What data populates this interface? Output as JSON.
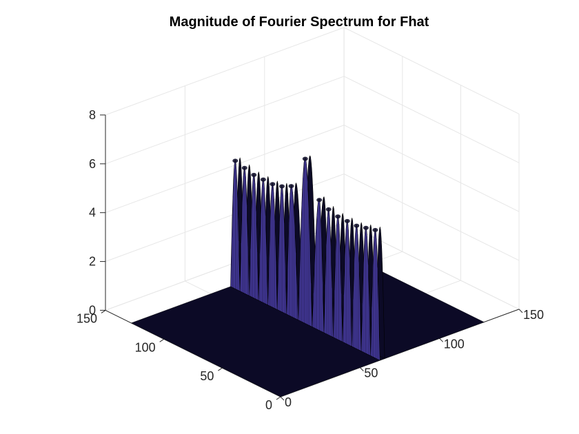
{
  "chart_data": {
    "type": "surface",
    "title": "Magnitude of Fourier Spectrum for Fhat",
    "xlabel": "",
    "ylabel": "",
    "zlabel": "",
    "xlim": [
      0,
      150
    ],
    "ylim": [
      0,
      150
    ],
    "zlim": [
      0,
      8
    ],
    "x_ticks": [
      "0",
      "50",
      "100",
      "150"
    ],
    "y_ticks": [
      "0",
      "50",
      "100",
      "150"
    ],
    "z_ticks": [
      "0",
      "2",
      "4",
      "6",
      "8"
    ],
    "grid": true,
    "surface_extent": {
      "x": [
        0,
        128
      ],
      "y": [
        0,
        128
      ]
    },
    "ridge": {
      "x_center": 64,
      "x_halfwidth": 1.5,
      "peak_y": 64,
      "lobe_peaks": [
        {
          "y": 4,
          "z": 5.3
        },
        {
          "y": 12,
          "z": 5.2
        },
        {
          "y": 20,
          "z": 5.1
        },
        {
          "y": 28,
          "z": 5.1
        },
        {
          "y": 36,
          "z": 5.1
        },
        {
          "y": 44,
          "z": 5.2
        },
        {
          "y": 52,
          "z": 5.4
        },
        {
          "y": 64,
          "z": 6.8
        },
        {
          "y": 76,
          "z": 5.4
        },
        {
          "y": 84,
          "z": 5.2
        },
        {
          "y": 92,
          "z": 5.1
        },
        {
          "y": 100,
          "z": 5.1
        },
        {
          "y": 108,
          "z": 5.1
        },
        {
          "y": 116,
          "z": 5.2
        },
        {
          "y": 124,
          "z": 5.3
        }
      ]
    },
    "colors": {
      "surface": "#4b3fa8",
      "surface_dark": "#0c0a26",
      "edge": "#000000"
    }
  }
}
